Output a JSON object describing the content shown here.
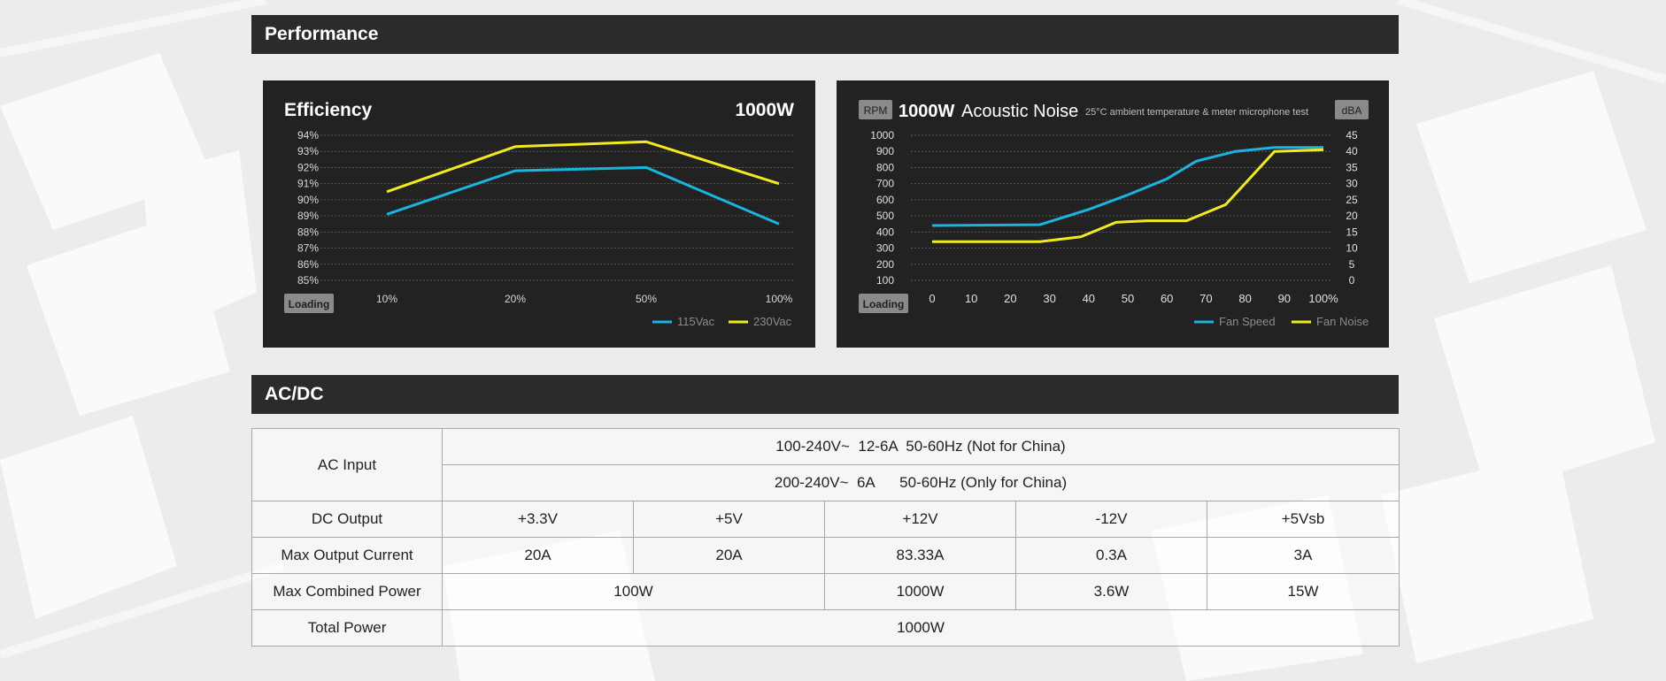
{
  "performance": {
    "title": "Performance"
  },
  "acdc": {
    "title": "AC/DC",
    "rows": {
      "ac_input": {
        "label": "AC Input",
        "line1": "100-240V~  12-6A  50-60Hz (Not for China)",
        "line2": "200-240V~  6A      50-60Hz (Only for China)"
      },
      "dc_output": {
        "label": "DC Output",
        "cells": [
          "+3.3V",
          "+5V",
          "+12V",
          "-12V",
          "+5Vsb"
        ]
      },
      "max_output_current": {
        "label": "Max Output Current",
        "cells": [
          "20A",
          "20A",
          "83.33A",
          "0.3A",
          "3A"
        ]
      },
      "max_combined_power": {
        "label": "Max Combined Power",
        "cells": [
          "100W",
          "1000W",
          "3.6W",
          "15W"
        ]
      },
      "total_power": {
        "label": "Total Power",
        "value": "1000W"
      }
    }
  },
  "chart_data": [
    {
      "type": "line",
      "title": "Efficiency",
      "badge": "1000W",
      "loading_label": "Loading",
      "x": [
        "10%",
        "20%",
        "50%",
        "100%"
      ],
      "y_ticks": [
        "85%",
        "86%",
        "87%",
        "88%",
        "89%",
        "90%",
        "91%",
        "92%",
        "93%",
        "94%"
      ],
      "ylim": [
        85,
        94
      ],
      "series": [
        {
          "name": "115Vac",
          "color": "#19b5e0",
          "values": [
            89.1,
            91.8,
            92.0,
            88.5
          ]
        },
        {
          "name": "230Vac",
          "color": "#f2ea1d",
          "values": [
            90.5,
            93.3,
            93.6,
            91.0
          ]
        }
      ],
      "legend_position": "bottom-right",
      "grid": true
    },
    {
      "type": "line",
      "title_bold": "1000W",
      "title_rest": "Acoustic Noise",
      "subtitle": "25°C ambient temperature & meter microphone test",
      "left_unit": "RPM",
      "right_unit": "dBA",
      "loading_label": "Loading",
      "x_ticks": [
        "0",
        "10",
        "20",
        "30",
        "40",
        "50",
        "60",
        "70",
        "80",
        "90",
        "100%"
      ],
      "xlim": [
        0,
        100
      ],
      "y_ticks_left": [
        "100",
        "200",
        "300",
        "400",
        "500",
        "600",
        "700",
        "800",
        "900",
        "1000"
      ],
      "ylim_left": [
        100,
        1000
      ],
      "y_ticks_right": [
        "0",
        "5",
        "10",
        "15",
        "20",
        "25",
        "30",
        "35",
        "40",
        "45"
      ],
      "ylim_right": [
        0,
        45
      ],
      "series": [
        {
          "name": "Fan Speed",
          "axis": "left",
          "color": "#19b5e0",
          "x": [
            0,
            27.5,
            40,
            50,
            60,
            67.5,
            77.5,
            87.5,
            100
          ],
          "values": [
            440,
            445,
            540,
            630,
            730,
            840,
            900,
            925,
            925
          ]
        },
        {
          "name": "Fan Noise",
          "axis": "right",
          "color": "#f2ea1d",
          "x": [
            0,
            27.5,
            38,
            47,
            55,
            65,
            75,
            87.5,
            100
          ],
          "values": [
            12,
            12,
            13.5,
            18,
            18.5,
            18.5,
            23.5,
            40,
            40.5
          ]
        }
      ],
      "legend_position": "bottom-right",
      "grid": true
    }
  ]
}
